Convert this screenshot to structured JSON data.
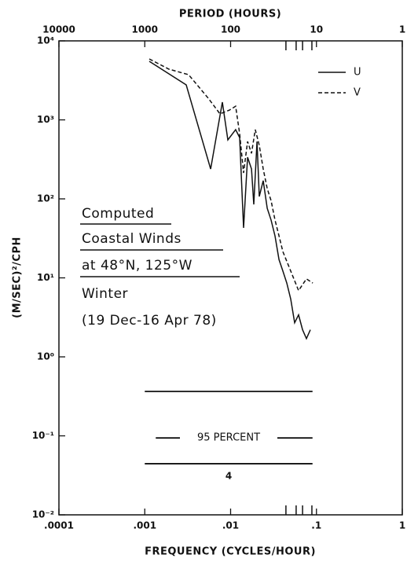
{
  "chart_data": {
    "type": "line",
    "top_axis_label": "PERIOD (HOURS)",
    "x_label": "FREQUENCY (CYCLES/HOUR)",
    "y_label": "(M/SEC)²/CPH",
    "log_x": true,
    "log_y": true,
    "xlim": [
      0.0001,
      1
    ],
    "xticks": [
      {
        "value": 0.0001,
        "label": ".0001"
      },
      {
        "value": 0.001,
        "label": ".001"
      },
      {
        "value": 0.01,
        "label": ".01"
      },
      {
        "value": 0.1,
        "label": ".1"
      },
      1
    ],
    "x2lim": [
      10000,
      1
    ],
    "x2ticks": [
      10000,
      1000,
      100,
      10,
      1
    ],
    "ylim": [
      0.01,
      10000
    ],
    "yticks": [
      {
        "value": 10000,
        "label": "10⁴"
      },
      {
        "value": 1000,
        "label": "10³"
      },
      {
        "value": 100,
        "label": "10²"
      },
      {
        "value": 10,
        "label": "10¹"
      },
      {
        "value": 1,
        "label": "10⁰"
      },
      {
        "value": 0.1,
        "label": "10⁻¹"
      },
      {
        "value": 0.01,
        "label": "10⁻²"
      }
    ],
    "period_marks": [
      0.0441,
      0.058,
      0.0689,
      0.0885
    ],
    "legend": "upper right",
    "series": [
      {
        "name": "U",
        "color": "#111111",
        "dash": "solid",
        "x": [
          0.00113,
          0.00304,
          0.00585,
          0.00802,
          0.00929,
          0.01145,
          0.01273,
          0.01416,
          0.01575,
          0.0175,
          0.01862,
          0.0203,
          0.0216,
          0.024,
          0.0267,
          0.0296,
          0.0329,
          0.0366,
          0.0406,
          0.0451,
          0.0501,
          0.0557,
          0.0619,
          0.0689,
          0.0764,
          0.0849
        ],
        "values": [
          5510,
          2770,
          239,
          1675,
          557,
          752,
          597,
          42.9,
          337,
          239,
          85,
          532,
          107,
          170,
          76,
          54,
          34,
          17,
          12.2,
          8.6,
          5.4,
          2.7,
          3.4,
          2.2,
          1.7,
          2.2
        ]
      },
      {
        "name": "V",
        "color": "#111111",
        "dash": "dashed",
        "x": [
          0.00113,
          0.00191,
          0.00324,
          0.00548,
          0.00752,
          0.00968,
          0.01145,
          0.01273,
          0.01416,
          0.01575,
          0.0175,
          0.0194,
          0.0216,
          0.024,
          0.0267,
          0.0296,
          0.0329,
          0.0366,
          0.0406,
          0.0501,
          0.0619,
          0.0764,
          0.0906
        ],
        "values": [
          5900,
          4385,
          3730,
          1880,
          1190,
          1330,
          1490,
          670,
          213,
          532,
          377,
          752,
          475,
          239,
          135,
          95,
          54,
          34,
          21.5,
          12.2,
          6.9,
          9.7,
          8.6
        ]
      }
    ],
    "annotation": [
      "Computed",
      "Coastal Winds",
      "at 48°N, 125°W",
      "Winter",
      "(19 Dec-16 Apr 78)"
    ],
    "confidence": {
      "label": "95 PERCENT",
      "dof_label": "4",
      "upper": 0.365,
      "center": 0.094,
      "lower": 0.0444,
      "xrange": [
        0.001,
        0.09
      ]
    }
  }
}
